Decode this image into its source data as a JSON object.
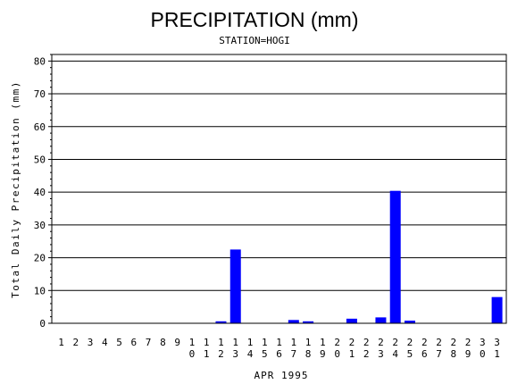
{
  "chart_data": {
    "type": "bar",
    "title": "PRECIPITATION (mm)",
    "subtitle": "STATION=HOGI",
    "xlabel": "APR 1995",
    "ylabel": "Total Daily Precipitation (mm)",
    "ylim": [
      0,
      82
    ],
    "yticks": [
      0,
      10,
      20,
      30,
      40,
      50,
      60,
      70,
      80
    ],
    "grid": true,
    "bar_color": "#0000ff",
    "categories": [
      "1",
      "2",
      "3",
      "4",
      "5",
      "6",
      "7",
      "8",
      "9",
      "10",
      "11",
      "12",
      "13",
      "14",
      "15",
      "16",
      "17",
      "18",
      "19",
      "20",
      "21",
      "22",
      "23",
      "24",
      "25",
      "26",
      "27",
      "28",
      "29",
      "30",
      "31"
    ],
    "values": [
      0,
      0,
      0,
      0,
      0,
      0,
      0,
      0,
      0,
      0,
      0,
      0.6,
      22.5,
      0,
      0,
      0,
      1.0,
      0.6,
      0,
      0,
      1.4,
      0,
      1.8,
      40.4,
      0.8,
      0,
      0,
      0,
      0,
      0,
      8.0
    ]
  }
}
